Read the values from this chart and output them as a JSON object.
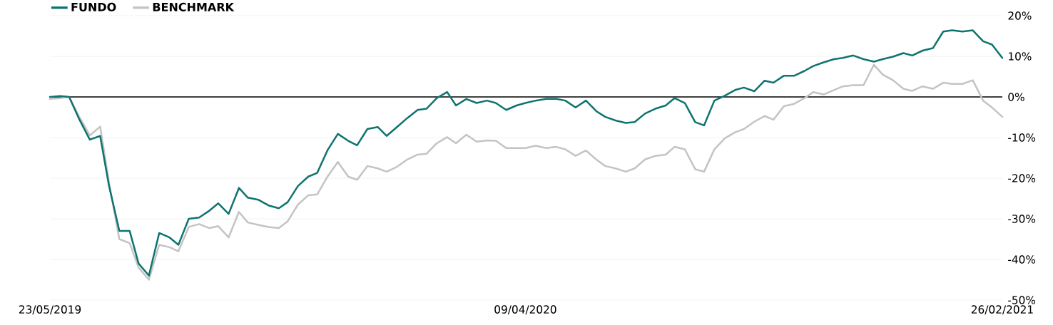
{
  "chart_data": {
    "type": "line",
    "x": [
      "2019-05-23",
      "2019-05-30",
      "2019-06-05",
      "2019-06-12",
      "2019-06-19",
      "2019-06-26",
      "2019-07-02",
      "2019-07-09",
      "2019-07-16",
      "2019-07-22",
      "2019-07-29",
      "2019-08-05",
      "2019-08-12",
      "2019-08-18",
      "2019-08-25",
      "2019-09-01",
      "2019-09-08",
      "2019-09-14",
      "2019-09-21",
      "2019-09-28",
      "2019-10-04",
      "2019-10-11",
      "2019-10-18",
      "2019-10-25",
      "2019-10-31",
      "2019-11-07",
      "2019-11-14",
      "2019-11-20",
      "2019-11-27",
      "2019-12-04",
      "2019-12-11",
      "2019-12-17",
      "2019-12-24",
      "2019-12-31",
      "2020-01-06",
      "2020-01-13",
      "2020-01-20",
      "2020-01-27",
      "2020-02-02",
      "2020-02-09",
      "2020-02-16",
      "2020-02-22",
      "2020-02-29",
      "2020-03-07",
      "2020-03-14",
      "2020-03-20",
      "2020-03-27",
      "2020-04-03",
      "2020-04-09",
      "2020-04-16",
      "2020-04-23",
      "2020-04-30",
      "2020-05-06",
      "2020-05-13",
      "2020-05-20",
      "2020-05-27",
      "2020-06-02",
      "2020-06-09",
      "2020-06-16",
      "2020-06-22",
      "2020-06-29",
      "2020-07-06",
      "2020-07-13",
      "2020-07-19",
      "2020-07-26",
      "2020-08-02",
      "2020-08-08",
      "2020-08-15",
      "2020-08-22",
      "2020-08-29",
      "2020-09-04",
      "2020-09-11",
      "2020-09-18",
      "2020-09-24",
      "2020-10-01",
      "2020-10-08",
      "2020-10-15",
      "2020-10-21",
      "2020-10-28",
      "2020-11-04",
      "2020-11-10",
      "2020-11-17",
      "2020-11-24",
      "2020-12-01",
      "2020-12-07",
      "2020-12-14",
      "2020-12-21",
      "2020-12-27",
      "2021-01-03",
      "2021-01-10",
      "2021-01-17",
      "2021-01-23",
      "2021-01-30",
      "2021-02-06",
      "2021-02-13",
      "2021-02-19",
      "2021-02-26"
    ],
    "series": [
      {
        "name": "FUNDO",
        "color": "#0f7470",
        "values": [
          0,
          0.2,
          0,
          -5.6,
          -10.5,
          -9.6,
          -21.9,
          -33,
          -33,
          -41,
          -44,
          -33.5,
          -34.6,
          -36.4,
          -30,
          -29.7,
          -28,
          -26.2,
          -28.8,
          -22.4,
          -24.8,
          -25.3,
          -26.7,
          -27.4,
          -25.9,
          -21.9,
          -19.6,
          -18.7,
          -13.1,
          -9.1,
          -10.8,
          -11.9,
          -7.9,
          -7.4,
          -9.6,
          -7.4,
          -5.2,
          -3.2,
          -2.9,
          -0.3,
          1.2,
          -2.1,
          -0.5,
          -1.5,
          -0.9,
          -1.5,
          -3.2,
          -2.1,
          -1.5,
          -0.9,
          -0.5,
          -0.5,
          -0.9,
          -2.6,
          -0.9,
          -3.5,
          -4.9,
          -5.8,
          -6.4,
          -6.2,
          -4.1,
          -2.9,
          -2.1,
          -0.3,
          -1.5,
          -6.2,
          -7,
          -0.9,
          0.3,
          1.7,
          2.3,
          1.4,
          4,
          3.5,
          5.2,
          5.2,
          6.4,
          7.6,
          8.5,
          9.3,
          9.6,
          10.2,
          9.3,
          8.7,
          9.3,
          9.9,
          10.8,
          10.2,
          11.4,
          12,
          16.1,
          16.4,
          16.1,
          16.4,
          13.7,
          12.9,
          9.6
        ]
      },
      {
        "name": "BENCHMARK",
        "color": "#c4c4c4",
        "values": [
          -0.5,
          -0.3,
          0,
          -5,
          -9.5,
          -7.3,
          -21,
          -35,
          -36,
          -42,
          -45,
          -36.4,
          -37,
          -38,
          -32,
          -31.3,
          -32.3,
          -31.8,
          -34.6,
          -28.3,
          -30.9,
          -31.5,
          -32,
          -32.3,
          -30.6,
          -26.5,
          -24.2,
          -24,
          -19.6,
          -16,
          -19.6,
          -20.4,
          -17,
          -17.6,
          -18.4,
          -17.2,
          -15.4,
          -14.2,
          -14,
          -11.4,
          -9.9,
          -11.4,
          -9.3,
          -11,
          -10.7,
          -10.8,
          -12.6,
          -12.6,
          -12.6,
          -12,
          -12.6,
          -12.3,
          -12.9,
          -14.5,
          -13.2,
          -15.4,
          -17,
          -17.6,
          -18.4,
          -17.6,
          -15.4,
          -14.5,
          -14.2,
          -12.3,
          -12.9,
          -17.8,
          -18.4,
          -12.9,
          -10.2,
          -8.7,
          -7.9,
          -6.1,
          -4.7,
          -5.6,
          -2.3,
          -1.7,
          -0.3,
          1.2,
          0.6,
          1.7,
          2.6,
          2.9,
          2.9,
          7.9,
          5.5,
          4.1,
          2,
          1.5,
          2.6,
          2,
          3.5,
          3.2,
          3.2,
          4.1,
          -0.9,
          -2.6,
          -4.9
        ]
      }
    ],
    "xlim": [
      "2019-05-23",
      "2021-02-26"
    ],
    "xticks": [
      {
        "value": "2019-05-23",
        "label": "23/05/2019"
      },
      {
        "value": "2020-04-09",
        "label": "09/04/2020"
      },
      {
        "value": "2021-02-26",
        "label": "26/02/2021"
      }
    ],
    "ylim": [
      -50,
      20
    ],
    "yticks": [
      {
        "value": 20,
        "label": "20%"
      },
      {
        "value": 10,
        "label": "10%"
      },
      {
        "value": 0,
        "label": "0%"
      },
      {
        "value": -10,
        "label": "-10%"
      },
      {
        "value": -20,
        "label": "-20%"
      },
      {
        "value": -30,
        "label": "-30%"
      },
      {
        "value": -40,
        "label": "-40%"
      },
      {
        "value": -50,
        "label": "-50%"
      }
    ],
    "ref_lines": [
      {
        "axis": "y",
        "value": 0,
        "color": "#000000"
      }
    ],
    "grid": "y",
    "legend": "top left"
  }
}
